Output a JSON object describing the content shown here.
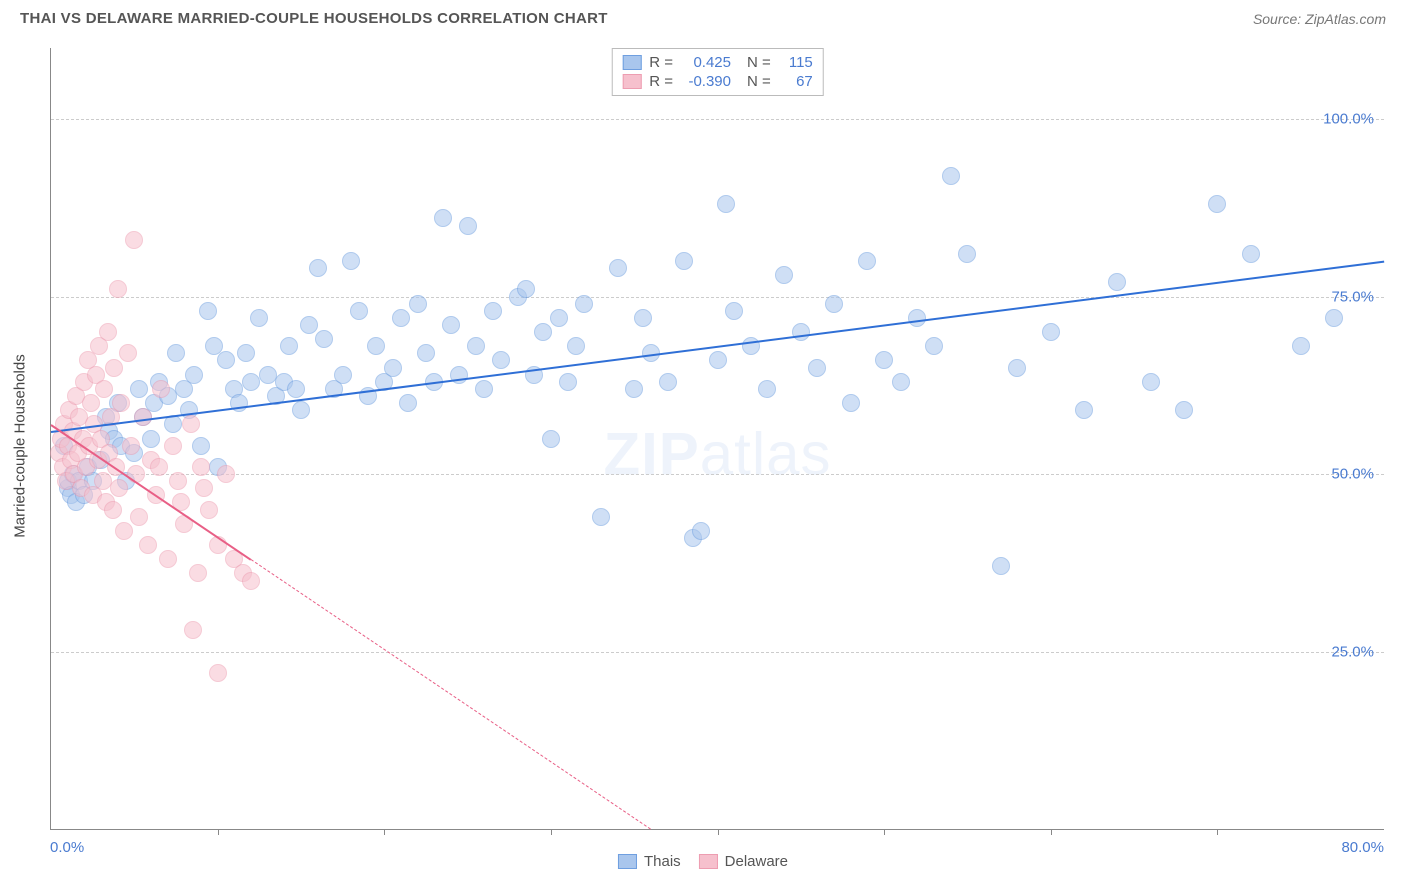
{
  "title": "THAI VS DELAWARE MARRIED-COUPLE HOUSEHOLDS CORRELATION CHART",
  "source": "Source: ZipAtlas.com",
  "watermark_a": "ZIP",
  "watermark_b": "atlas",
  "chart": {
    "type": "scatter",
    "xlim": [
      0,
      80
    ],
    "ylim": [
      0,
      110
    ],
    "x_min_label": "0.0%",
    "x_max_label": "80.0%",
    "y_ticks": [
      25,
      50,
      75,
      100
    ],
    "y_tick_labels": [
      "25.0%",
      "50.0%",
      "75.0%",
      "100.0%"
    ],
    "x_tick_positions": [
      10,
      20,
      30,
      40,
      50,
      60,
      70
    ],
    "ylabel": "Married-couple Households",
    "background_color": "#ffffff",
    "grid_color": "#cccccc",
    "axis_color": "#888888",
    "axis_label_color": "#4a7bd0",
    "point_radius": 9,
    "point_opacity": 0.55,
    "series": [
      {
        "name": "Thais",
        "fill": "#a9c6ed",
        "stroke": "#6f9fe0",
        "trend_color": "#2f6fd6",
        "r": 0.425,
        "n": 115,
        "trend": {
          "x1": 0,
          "y1": 56,
          "x2": 80,
          "y2": 80,
          "dashed_from_x": null
        },
        "points": [
          [
            1,
            48
          ],
          [
            1,
            49
          ],
          [
            1.2,
            47
          ],
          [
            1.3,
            50
          ],
          [
            1.5,
            46
          ],
          [
            1.7,
            49
          ],
          [
            2,
            47
          ],
          [
            2.2,
            51
          ],
          [
            2.5,
            49
          ],
          [
            0.8,
            54
          ],
          [
            3,
            52
          ],
          [
            3.3,
            58
          ],
          [
            3.5,
            56
          ],
          [
            3.8,
            55
          ],
          [
            4,
            60
          ],
          [
            4.2,
            54
          ],
          [
            4.5,
            49
          ],
          [
            5,
            53
          ],
          [
            5.3,
            62
          ],
          [
            5.5,
            58
          ],
          [
            6,
            55
          ],
          [
            6.2,
            60
          ],
          [
            6.5,
            63
          ],
          [
            7,
            61
          ],
          [
            7.3,
            57
          ],
          [
            7.5,
            67
          ],
          [
            8,
            62
          ],
          [
            8.3,
            59
          ],
          [
            8.6,
            64
          ],
          [
            9,
            54
          ],
          [
            9.4,
            73
          ],
          [
            9.8,
            68
          ],
          [
            10,
            51
          ],
          [
            10.5,
            66
          ],
          [
            11,
            62
          ],
          [
            11.3,
            60
          ],
          [
            11.7,
            67
          ],
          [
            12,
            63
          ],
          [
            12.5,
            72
          ],
          [
            13,
            64
          ],
          [
            13.5,
            61
          ],
          [
            14,
            63
          ],
          [
            14.3,
            68
          ],
          [
            14.7,
            62
          ],
          [
            15,
            59
          ],
          [
            15.5,
            71
          ],
          [
            16,
            79
          ],
          [
            16.4,
            69
          ],
          [
            17,
            62
          ],
          [
            17.5,
            64
          ],
          [
            18,
            80
          ],
          [
            18.5,
            73
          ],
          [
            19,
            61
          ],
          [
            19.5,
            68
          ],
          [
            20,
            63
          ],
          [
            20.5,
            65
          ],
          [
            21,
            72
          ],
          [
            21.4,
            60
          ],
          [
            22,
            74
          ],
          [
            22.5,
            67
          ],
          [
            23,
            63
          ],
          [
            23.5,
            86
          ],
          [
            24,
            71
          ],
          [
            24.5,
            64
          ],
          [
            25,
            85
          ],
          [
            25.5,
            68
          ],
          [
            26,
            62
          ],
          [
            26.5,
            73
          ],
          [
            27,
            66
          ],
          [
            28,
            75
          ],
          [
            28.5,
            76
          ],
          [
            29,
            64
          ],
          [
            29.5,
            70
          ],
          [
            30,
            55
          ],
          [
            30.5,
            72
          ],
          [
            31,
            63
          ],
          [
            31.5,
            68
          ],
          [
            32,
            74
          ],
          [
            33,
            44
          ],
          [
            34,
            79
          ],
          [
            35,
            62
          ],
          [
            35.5,
            72
          ],
          [
            36,
            67
          ],
          [
            37,
            63
          ],
          [
            38,
            80
          ],
          [
            38.5,
            41
          ],
          [
            39,
            42
          ],
          [
            40,
            66
          ],
          [
            40.5,
            88
          ],
          [
            41,
            73
          ],
          [
            42,
            68
          ],
          [
            43,
            62
          ],
          [
            44,
            78
          ],
          [
            45,
            70
          ],
          [
            46,
            65
          ],
          [
            47,
            74
          ],
          [
            48,
            60
          ],
          [
            49,
            80
          ],
          [
            50,
            66
          ],
          [
            51,
            63
          ],
          [
            52,
            72
          ],
          [
            53,
            68
          ],
          [
            54,
            92
          ],
          [
            55,
            81
          ],
          [
            57,
            37
          ],
          [
            58,
            65
          ],
          [
            60,
            70
          ],
          [
            62,
            59
          ],
          [
            64,
            77
          ],
          [
            66,
            63
          ],
          [
            68,
            59
          ],
          [
            70,
            88
          ],
          [
            72,
            81
          ],
          [
            75,
            68
          ],
          [
            77,
            72
          ]
        ]
      },
      {
        "name": "Delaware",
        "fill": "#f6c0cd",
        "stroke": "#ed9db1",
        "trend_color": "#e85f86",
        "r": -0.39,
        "n": 67,
        "trend": {
          "x1": 0,
          "y1": 57,
          "x2": 36,
          "y2": 0,
          "dashed_from_x": 12
        },
        "points": [
          [
            0.5,
            53
          ],
          [
            0.6,
            55
          ],
          [
            0.7,
            51
          ],
          [
            0.8,
            57
          ],
          [
            0.9,
            49
          ],
          [
            1,
            54
          ],
          [
            1.1,
            59
          ],
          [
            1.2,
            52
          ],
          [
            1.3,
            56
          ],
          [
            1.4,
            50
          ],
          [
            1.5,
            61
          ],
          [
            1.6,
            53
          ],
          [
            1.7,
            58
          ],
          [
            1.8,
            48
          ],
          [
            1.9,
            55
          ],
          [
            2,
            63
          ],
          [
            2.1,
            51
          ],
          [
            2.2,
            66
          ],
          [
            2.3,
            54
          ],
          [
            2.4,
            60
          ],
          [
            2.5,
            47
          ],
          [
            2.6,
            57
          ],
          [
            2.7,
            64
          ],
          [
            2.8,
            52
          ],
          [
            2.9,
            68
          ],
          [
            3,
            55
          ],
          [
            3.1,
            49
          ],
          [
            3.2,
            62
          ],
          [
            3.3,
            46
          ],
          [
            3.4,
            70
          ],
          [
            3.5,
            53
          ],
          [
            3.6,
            58
          ],
          [
            3.7,
            45
          ],
          [
            3.8,
            65
          ],
          [
            3.9,
            51
          ],
          [
            4,
            76
          ],
          [
            4.1,
            48
          ],
          [
            4.2,
            60
          ],
          [
            4.4,
            42
          ],
          [
            4.6,
            67
          ],
          [
            4.8,
            54
          ],
          [
            5,
            83
          ],
          [
            5.1,
            50
          ],
          [
            5.3,
            44
          ],
          [
            5.5,
            58
          ],
          [
            5.8,
            40
          ],
          [
            6,
            52
          ],
          [
            6.3,
            47
          ],
          [
            6.6,
            62
          ],
          [
            7,
            38
          ],
          [
            7.3,
            54
          ],
          [
            7.6,
            49
          ],
          [
            8,
            43
          ],
          [
            8.4,
            57
          ],
          [
            8.8,
            36
          ],
          [
            9,
            51
          ],
          [
            9.5,
            45
          ],
          [
            10,
            40
          ],
          [
            10.5,
            50
          ],
          [
            11,
            38
          ],
          [
            11.5,
            36
          ],
          [
            12,
            35
          ],
          [
            8.5,
            28
          ],
          [
            10,
            22
          ],
          [
            6.5,
            51
          ],
          [
            7.8,
            46
          ],
          [
            9.2,
            48
          ]
        ]
      }
    ]
  },
  "legend_top": {
    "r_label": "R =",
    "n_label": "N ="
  },
  "legend_bottom": [
    {
      "label": "Thais",
      "fill": "#a9c6ed",
      "stroke": "#6f9fe0"
    },
    {
      "label": "Delaware",
      "fill": "#f6c0cd",
      "stroke": "#ed9db1"
    }
  ]
}
